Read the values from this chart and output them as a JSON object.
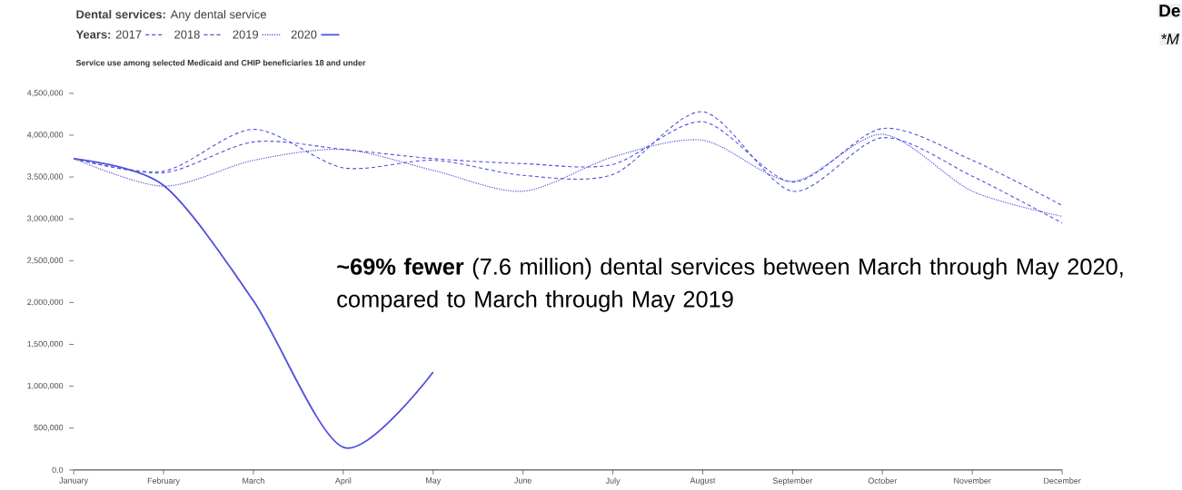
{
  "chart_data": {
    "type": "line",
    "title": "**Dental services:** Any dental service",
    "subtitle": "Service use among selected Medicaid and CHIP beneficiaries 18 and under",
    "legend_title": "Years:",
    "legend": "top left",
    "categories": [
      "January",
      "February",
      "March",
      "April",
      "May",
      "June",
      "July",
      "August",
      "September",
      "October",
      "November",
      "December"
    ],
    "series": [
      {
        "name": "2017",
        "color": "#5050dc",
        "line_style": "dashed",
        "values": [
          3720000,
          3570000,
          4070000,
          3610000,
          3700000,
          3520000,
          3530000,
          4280000,
          3330000,
          3970000,
          3510000,
          2950000
        ]
      },
      {
        "name": "2018",
        "color": "#5050dc",
        "line_style": "dashed",
        "values": [
          3720000,
          3550000,
          3920000,
          3830000,
          3720000,
          3660000,
          3650000,
          4160000,
          3440000,
          4080000,
          3700000,
          3160000
        ]
      },
      {
        "name": "2019",
        "color": "#5050dc",
        "line_style": "dotted",
        "values": [
          3720000,
          3390000,
          3700000,
          3830000,
          3580000,
          3330000,
          3740000,
          3940000,
          3450000,
          4010000,
          3330000,
          3030000
        ]
      },
      {
        "name": "2020",
        "color": "#5050dc",
        "line_style": "solid",
        "values": [
          3720000,
          3400000,
          2020000,
          270000,
          1170000,
          null,
          null,
          null,
          null,
          null,
          null,
          null
        ]
      }
    ],
    "ylim": [
      0,
      4500000
    ],
    "yticks": [
      {
        "value": 0,
        "label": "0.0"
      },
      {
        "value": 500000,
        "label": "500,000"
      },
      {
        "value": 1000000,
        "label": "1,000,000"
      },
      {
        "value": 1500000,
        "label": "1,500,000"
      },
      {
        "value": 2000000,
        "label": "2,000,000"
      },
      {
        "value": 2500000,
        "label": "2,500,000"
      },
      {
        "value": 3000000,
        "label": "3,000,000"
      },
      {
        "value": 3500000,
        "label": "3,500,000"
      },
      {
        "value": 4000000,
        "label": "4,000,000"
      },
      {
        "value": 4500000,
        "label": "4,500,000"
      }
    ],
    "grid": false,
    "annotations": [
      "**~69% fewer** (7.6 million) dental services between March through May 2020, compared to March through May 2019",
      "**De**",
      "*M"
    ]
  }
}
